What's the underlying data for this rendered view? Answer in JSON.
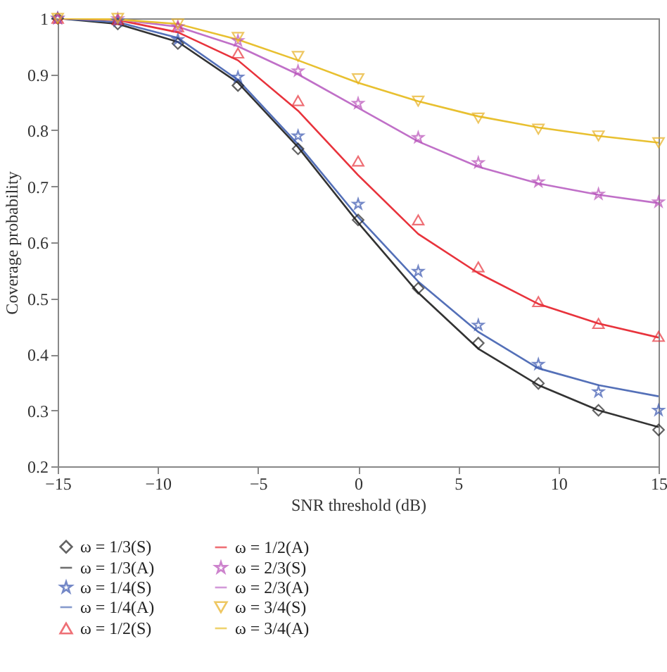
{
  "chart_data": {
    "type": "line",
    "xlabel": "SNR threshold (dB)",
    "ylabel": "Coverage probability",
    "x": [
      -15,
      -12,
      -9,
      -6,
      -3,
      0,
      3,
      6,
      9,
      12,
      15
    ],
    "xlim": [
      -15,
      15
    ],
    "xticks": [
      -15,
      -10,
      -5,
      0,
      5,
      10,
      15
    ],
    "ylim": [
      0.2,
      1
    ],
    "yticks": [
      0.2,
      0.3,
      0.4,
      0.5,
      0.6,
      0.7,
      0.8,
      0.9,
      1
    ],
    "legend": "bottom",
    "series": [
      {
        "name": "ω = 1/3(S)",
        "type": "scatter",
        "marker": "diamond",
        "color": "#222222",
        "values": [
          1,
          0.99,
          0.955,
          0.88,
          0.767,
          0.64,
          0.518,
          0.42,
          0.348,
          0.3,
          0.265
        ]
      },
      {
        "name": "ω = 1/3(A)",
        "type": "line",
        "marker": "none",
        "color": "#333333",
        "values": [
          1,
          0.99,
          0.958,
          0.885,
          0.77,
          0.635,
          0.51,
          0.41,
          0.345,
          0.3,
          0.27
        ]
      },
      {
        "name": "ω = 1/4(S)",
        "type": "scatter",
        "marker": "star",
        "color": "#3a57b0",
        "values": [
          1,
          0.995,
          0.962,
          0.895,
          0.79,
          0.668,
          0.548,
          0.452,
          0.382,
          0.333,
          0.3
        ]
      },
      {
        "name": "ω = 1/4(A)",
        "type": "line",
        "marker": "none",
        "color": "#5470b8",
        "values": [
          1,
          0.993,
          0.965,
          0.89,
          0.775,
          0.645,
          0.53,
          0.44,
          0.375,
          0.345,
          0.325
        ]
      },
      {
        "name": "ω = 1/2(S)",
        "type": "scatter",
        "marker": "triangle",
        "color": "#e8333c",
        "values": [
          1,
          0.998,
          0.985,
          0.938,
          0.853,
          0.745,
          0.64,
          0.556,
          0.494,
          0.455,
          0.432
        ]
      },
      {
        "name": "ω = 1/2(A)",
        "type": "line",
        "marker": "none",
        "color": "#e8333c",
        "values": [
          1,
          0.997,
          0.975,
          0.925,
          0.835,
          0.72,
          0.615,
          0.545,
          0.49,
          0.455,
          0.43
        ]
      },
      {
        "name": "ω = 2/3(S)",
        "type": "scatter",
        "marker": "star",
        "color": "#b84fb8",
        "values": [
          1,
          0.999,
          0.985,
          0.96,
          0.906,
          0.848,
          0.787,
          0.742,
          0.708,
          0.686,
          0.672
        ]
      },
      {
        "name": "ω = 2/3(A)",
        "type": "line",
        "marker": "none",
        "color": "#c070c8",
        "values": [
          1,
          0.998,
          0.985,
          0.95,
          0.9,
          0.84,
          0.78,
          0.735,
          0.705,
          0.685,
          0.67
        ]
      },
      {
        "name": "ω = 3/4(S)",
        "type": "scatter",
        "marker": "triangle-down",
        "color": "#e8b020",
        "values": [
          1,
          1,
          0.99,
          0.966,
          0.932,
          0.892,
          0.852,
          0.822,
          0.802,
          0.79,
          0.778
        ]
      },
      {
        "name": "ω = 3/4(A)",
        "type": "line",
        "marker": "none",
        "color": "#e8c030",
        "values": [
          1,
          0.998,
          0.99,
          0.962,
          0.925,
          0.885,
          0.852,
          0.825,
          0.805,
          0.79,
          0.778
        ]
      }
    ]
  }
}
